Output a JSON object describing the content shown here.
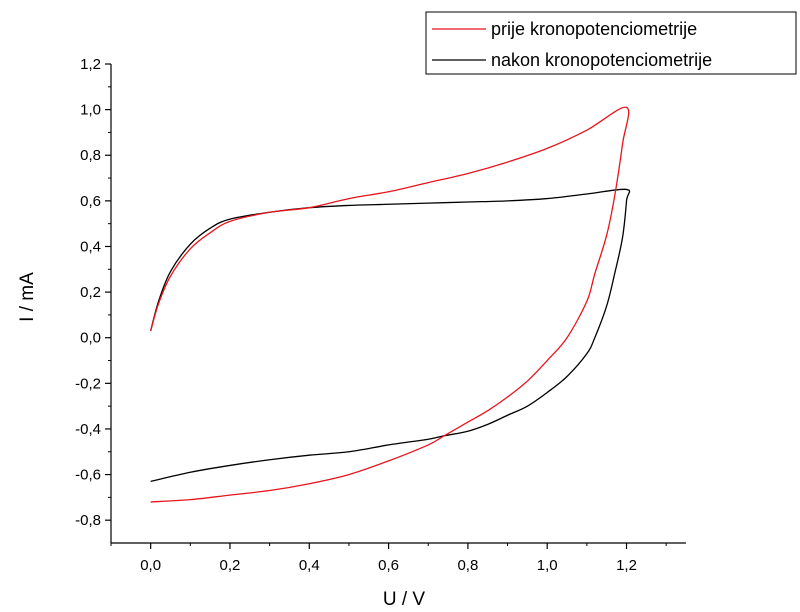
{
  "chart_data": {
    "type": "line",
    "xlabel": "U / V",
    "ylabel": "I / mA",
    "xlim": [
      -0.1,
      1.35
    ],
    "ylim": [
      -0.9,
      1.2
    ],
    "xticks": [
      0.0,
      0.2,
      0.4,
      0.6,
      0.8,
      1.0,
      1.2
    ],
    "xtick_labels": [
      "0,0",
      "0,2",
      "0,4",
      "0,6",
      "0,8",
      "1,0",
      "1,2"
    ],
    "yticks": [
      -0.8,
      -0.6,
      -0.4,
      -0.2,
      0.0,
      0.2,
      0.4,
      0.6,
      0.8,
      1.0,
      1.2
    ],
    "ytick_labels": [
      "-0,8",
      "-0,6",
      "-0,4",
      "-0,2",
      "0,0",
      "0,2",
      "0,4",
      "0,6",
      "0,8",
      "1,0",
      "1,2"
    ],
    "grid": false,
    "legend_position": "top-right",
    "series": [
      {
        "name": "prije kronopotenciometrije",
        "color": "#e8141c",
        "points": [
          [
            0.0,
            0.03
          ],
          [
            0.02,
            0.15
          ],
          [
            0.05,
            0.27
          ],
          [
            0.1,
            0.39
          ],
          [
            0.15,
            0.46
          ],
          [
            0.2,
            0.51
          ],
          [
            0.3,
            0.55
          ],
          [
            0.4,
            0.57
          ],
          [
            0.5,
            0.61
          ],
          [
            0.6,
            0.64
          ],
          [
            0.7,
            0.68
          ],
          [
            0.8,
            0.72
          ],
          [
            0.9,
            0.77
          ],
          [
            1.0,
            0.83
          ],
          [
            1.1,
            0.91
          ],
          [
            1.2,
            1.01
          ],
          [
            1.19,
            0.85
          ],
          [
            1.17,
            0.62
          ],
          [
            1.15,
            0.45
          ],
          [
            1.12,
            0.28
          ],
          [
            1.1,
            0.16
          ],
          [
            1.05,
            0.0
          ],
          [
            1.0,
            -0.1
          ],
          [
            0.95,
            -0.19
          ],
          [
            0.9,
            -0.26
          ],
          [
            0.85,
            -0.32
          ],
          [
            0.8,
            -0.37
          ],
          [
            0.74,
            -0.43
          ],
          [
            0.7,
            -0.47
          ],
          [
            0.6,
            -0.54
          ],
          [
            0.5,
            -0.6
          ],
          [
            0.4,
            -0.64
          ],
          [
            0.3,
            -0.67
          ],
          [
            0.2,
            -0.69
          ],
          [
            0.1,
            -0.71
          ],
          [
            0.0,
            -0.72
          ]
        ]
      },
      {
        "name": "nakon kronopotenciometrije",
        "color": "#000000",
        "points": [
          [
            0.0,
            0.03
          ],
          [
            0.02,
            0.16
          ],
          [
            0.05,
            0.29
          ],
          [
            0.1,
            0.41
          ],
          [
            0.15,
            0.48
          ],
          [
            0.2,
            0.52
          ],
          [
            0.3,
            0.55
          ],
          [
            0.4,
            0.57
          ],
          [
            0.5,
            0.58
          ],
          [
            0.6,
            0.585
          ],
          [
            0.7,
            0.59
          ],
          [
            0.8,
            0.595
          ],
          [
            0.9,
            0.6
          ],
          [
            1.0,
            0.61
          ],
          [
            1.1,
            0.63
          ],
          [
            1.2,
            0.65
          ],
          [
            1.2,
            0.6
          ],
          [
            1.19,
            0.44
          ],
          [
            1.17,
            0.28
          ],
          [
            1.15,
            0.14
          ],
          [
            1.12,
            0.0
          ],
          [
            1.1,
            -0.07
          ],
          [
            1.05,
            -0.17
          ],
          [
            1.0,
            -0.24
          ],
          [
            0.95,
            -0.3
          ],
          [
            0.9,
            -0.34
          ],
          [
            0.85,
            -0.38
          ],
          [
            0.8,
            -0.41
          ],
          [
            0.74,
            -0.43
          ],
          [
            0.7,
            -0.445
          ],
          [
            0.6,
            -0.47
          ],
          [
            0.5,
            -0.5
          ],
          [
            0.4,
            -0.515
          ],
          [
            0.3,
            -0.535
          ],
          [
            0.2,
            -0.56
          ],
          [
            0.1,
            -0.59
          ],
          [
            0.0,
            -0.63
          ]
        ]
      }
    ]
  }
}
